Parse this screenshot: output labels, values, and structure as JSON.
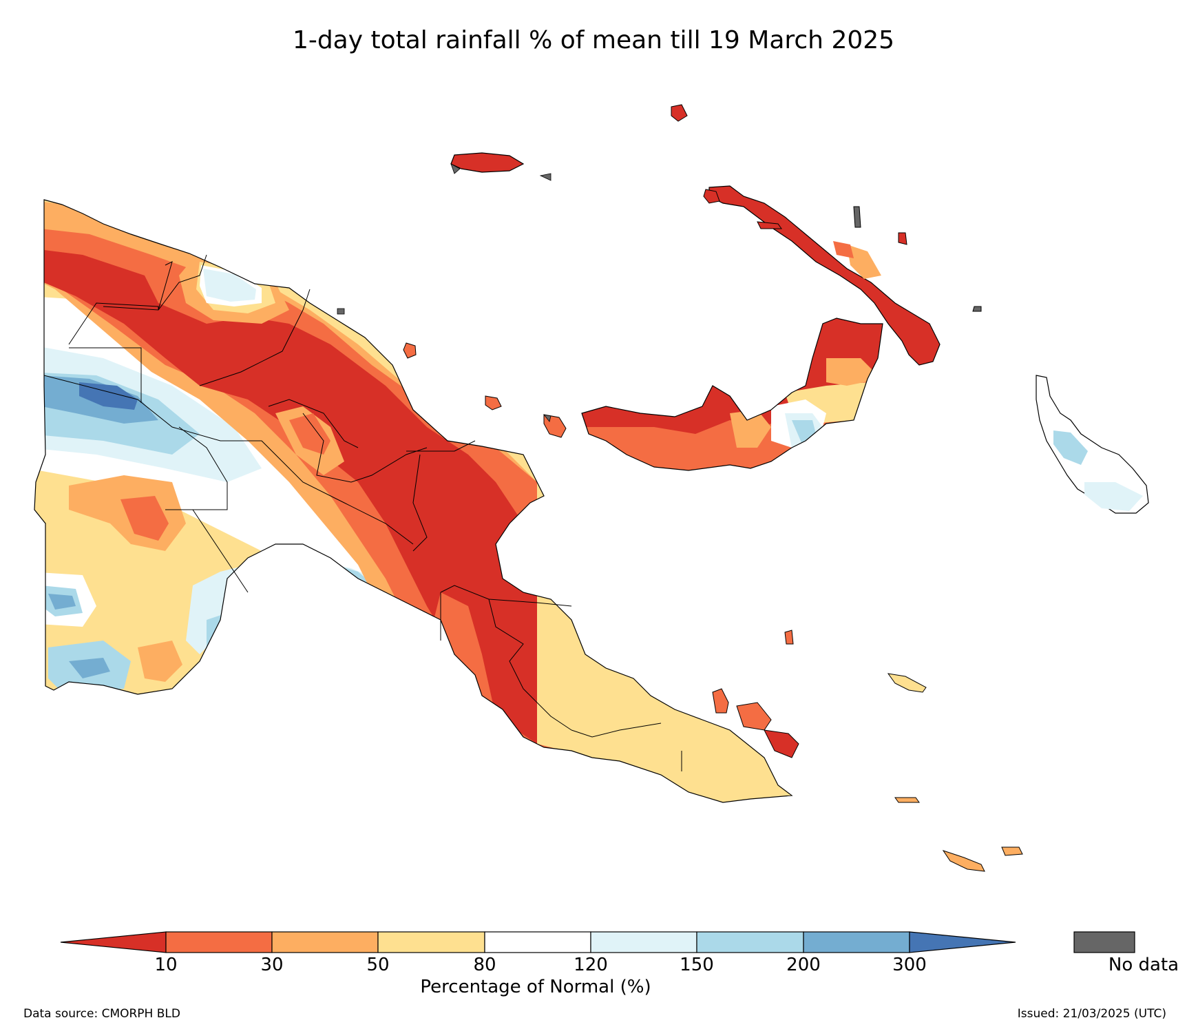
{
  "title": "1-day total rainfall % of mean till 19 March 2025",
  "colorbar": {
    "label": "Percentage of Normal (%)",
    "ticks": [
      "10",
      "30",
      "50",
      "80",
      "120",
      "150",
      "200",
      "300"
    ],
    "colors": [
      "#d73027",
      "#f46d43",
      "#fdae61",
      "#fee090",
      "#ffffff",
      "#e0f3f8",
      "#abd9e9",
      "#74add1",
      "#4575b4"
    ]
  },
  "no_data": {
    "label": "No data",
    "color": "#666666"
  },
  "footer": {
    "source": "Data source: CMORPH BLD",
    "issued": "Issued: 21/03/2025 (UTC)"
  }
}
